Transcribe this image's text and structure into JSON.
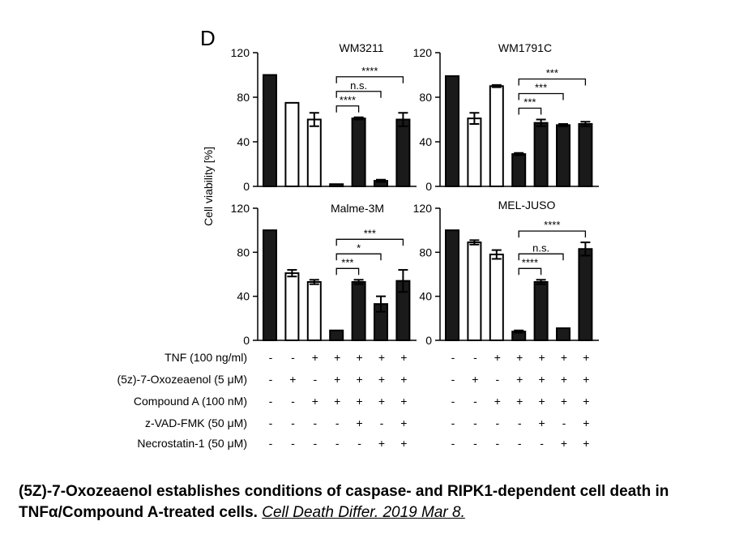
{
  "panel_label": "D",
  "y_axis_label": "Cell viability [%]",
  "caption": {
    "text": "(5Z)-7-Oxozeaenol establishes conditions of caspase- and RIPK1-dependent cell death in TNFα/Compound A-treated cells.",
    "citation": "Cell Death Differ. 2019 Mar 8."
  },
  "treatments": {
    "labels": [
      "TNF (100 ng/ml)",
      "(5z)-7-Oxozeaenol (5 μM)",
      "Compound A (100 nM)",
      "z-VAD-FMK (50 μM)",
      "Necrostatin-1 (50 μM)"
    ],
    "matrix": [
      [
        "-",
        "-",
        "+",
        "+",
        "+",
        "+",
        "+"
      ],
      [
        "-",
        "+",
        "-",
        "+",
        "+",
        "+",
        "+"
      ],
      [
        "-",
        "-",
        "+",
        "+",
        "+",
        "+",
        "+"
      ],
      [
        "-",
        "-",
        "-",
        "-",
        "+",
        "-",
        "+"
      ],
      [
        "-",
        "-",
        "-",
        "-",
        "-",
        "+",
        "+"
      ]
    ]
  },
  "chart_data": [
    {
      "type": "bar",
      "title": "WM3211",
      "ylim": [
        0,
        120
      ],
      "yticks": [
        0,
        40,
        80,
        120
      ],
      "values": [
        100,
        75,
        60,
        2,
        61,
        5,
        60
      ],
      "errors": [
        0,
        0,
        6,
        0,
        1,
        1,
        6
      ],
      "fill": [
        "black",
        "white",
        "white",
        "black",
        "black",
        "black",
        "black"
      ],
      "significance": [
        {
          "from": 3,
          "to": 4,
          "label": "****"
        },
        {
          "from": 3,
          "to": 5,
          "label": "n.s."
        },
        {
          "from": 3,
          "to": 6,
          "label": "****"
        }
      ]
    },
    {
      "type": "bar",
      "title": "WM1791C",
      "ylim": [
        0,
        120
      ],
      "yticks": [
        0,
        40,
        80,
        120
      ],
      "values": [
        99,
        61,
        90,
        29,
        57,
        55,
        56
      ],
      "errors": [
        0,
        5,
        1,
        1,
        3,
        1,
        2
      ],
      "fill": [
        "black",
        "white",
        "white",
        "black",
        "black",
        "black",
        "black"
      ],
      "significance": [
        {
          "from": 3,
          "to": 4,
          "label": "***"
        },
        {
          "from": 3,
          "to": 5,
          "label": "***"
        },
        {
          "from": 3,
          "to": 6,
          "label": "***"
        }
      ]
    },
    {
      "type": "bar",
      "title": "Malme-3M",
      "ylim": [
        0,
        120
      ],
      "yticks": [
        0,
        40,
        80,
        120
      ],
      "values": [
        100,
        61,
        53,
        9,
        53,
        33,
        54
      ],
      "errors": [
        0,
        3,
        2,
        0,
        2,
        7,
        10
      ],
      "fill": [
        "black",
        "white",
        "white",
        "black",
        "black",
        "black",
        "black"
      ],
      "significance": [
        {
          "from": 3,
          "to": 4,
          "label": "***"
        },
        {
          "from": 3,
          "to": 5,
          "label": "*"
        },
        {
          "from": 3,
          "to": 6,
          "label": "***"
        }
      ]
    },
    {
      "type": "bar",
      "title": "MEL-JUSO",
      "ylim": [
        0,
        120
      ],
      "yticks": [
        0,
        40,
        80,
        120
      ],
      "values": [
        100,
        89,
        78,
        8,
        53,
        11,
        83
      ],
      "errors": [
        0,
        2,
        4,
        1,
        2,
        0,
        6
      ],
      "fill": [
        "black",
        "white",
        "white",
        "black",
        "black",
        "black",
        "black"
      ],
      "significance": [
        {
          "from": 3,
          "to": 4,
          "label": "****"
        },
        {
          "from": 3,
          "to": 5,
          "label": "n.s."
        },
        {
          "from": 3,
          "to": 6,
          "label": "****"
        }
      ]
    }
  ]
}
